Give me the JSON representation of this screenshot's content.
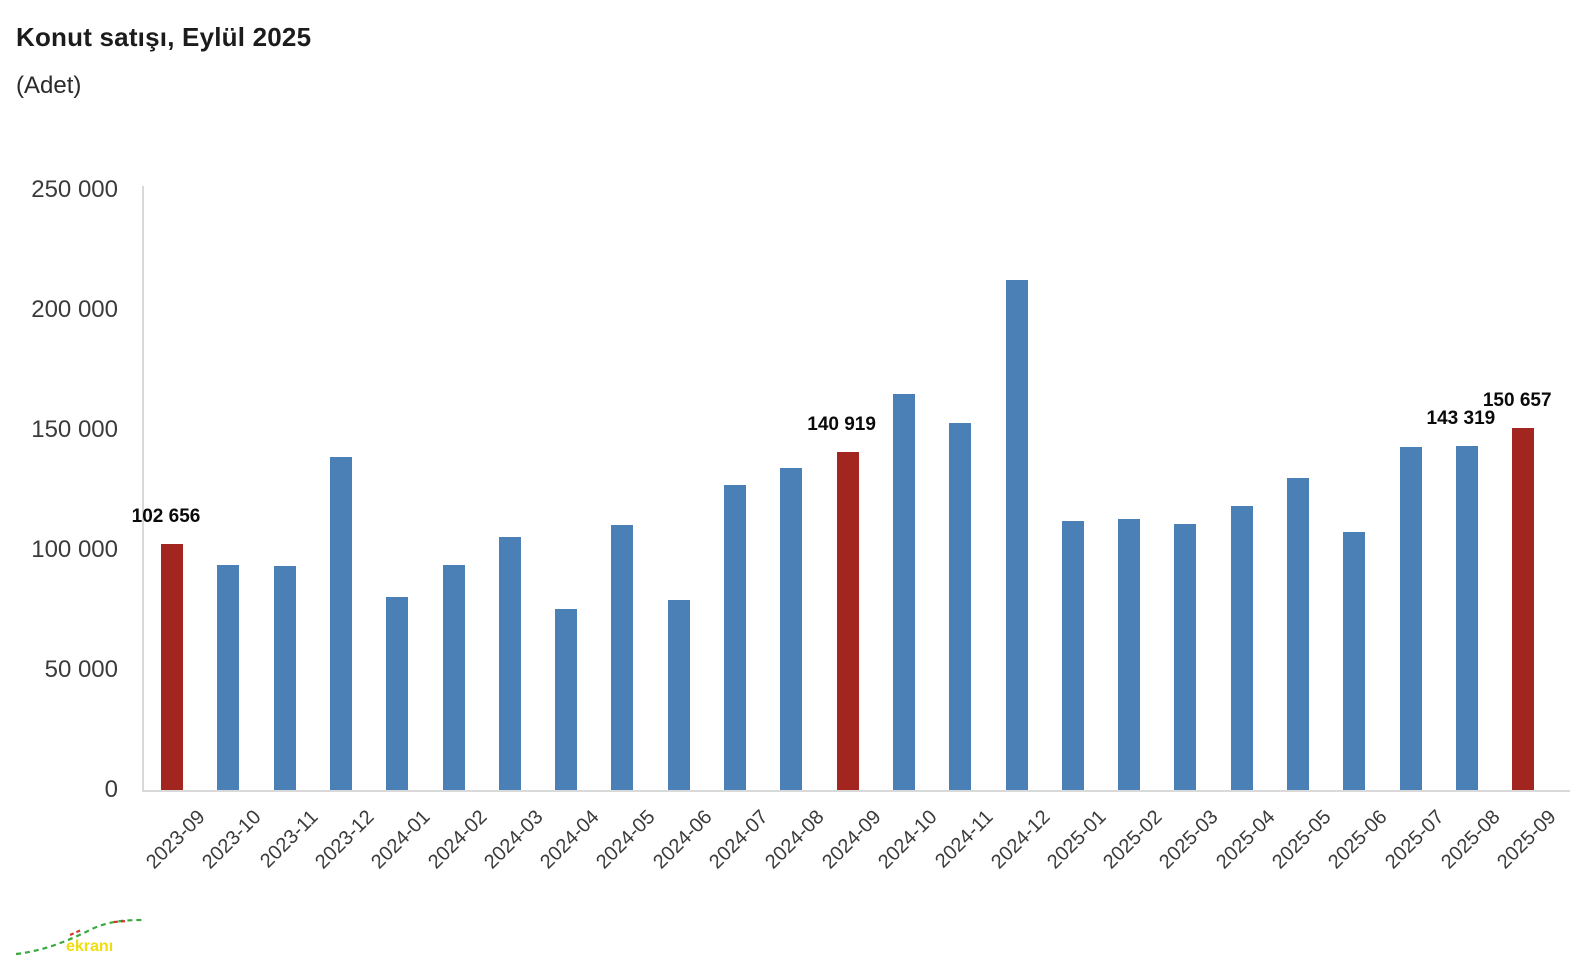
{
  "header": {
    "title": "Konut satışı, Eylül 2025",
    "subtitle": "(Adet)"
  },
  "watermark": {
    "text": "ekranı"
  },
  "chart_data": {
    "type": "bar",
    "title": "Konut satışı, Eylül 2025",
    "unit_label": "(Adet)",
    "xlabel": "",
    "ylabel": "",
    "categories": [
      "2023-09",
      "2023-10",
      "2023-11",
      "2023-12",
      "2024-01",
      "2024-02",
      "2024-03",
      "2024-04",
      "2024-05",
      "2024-06",
      "2024-07",
      "2024-08",
      "2024-09",
      "2024-10",
      "2024-11",
      "2024-12",
      "2025-01",
      "2025-02",
      "2025-03",
      "2025-04",
      "2025-05",
      "2025-06",
      "2025-07",
      "2025-08",
      "2025-09"
    ],
    "values": [
      102656,
      93800,
      93500,
      138600,
      80300,
      93900,
      105500,
      75600,
      110600,
      79300,
      127100,
      134200,
      140919,
      165100,
      153000,
      212600,
      112200,
      112800,
      110800,
      118400,
      130000,
      107700,
      142900,
      143319,
      150657
    ],
    "highlight_indices": [
      0,
      12,
      24
    ],
    "value_labels": [
      {
        "index": 0,
        "text": "102 656"
      },
      {
        "index": 12,
        "text": "140 919"
      },
      {
        "index": 23,
        "text": "143 319"
      },
      {
        "index": 24,
        "text": "150 657"
      }
    ],
    "colors": {
      "bar_default": "#4b80b7",
      "bar_highlight": "#a3251f",
      "axis_line": "#d9d9d9",
      "tick_text": "#3b3b3b",
      "value_label_text": "#0a0a0a"
    },
    "ylim": [
      0,
      250000
    ],
    "yticks": [
      {
        "value": 0,
        "label": "0"
      },
      {
        "value": 50000,
        "label": "50 000"
      },
      {
        "value": 100000,
        "label": "100 000"
      },
      {
        "value": 150000,
        "label": "150 000"
      },
      {
        "value": 200000,
        "label": "200 000"
      },
      {
        "value": 250000,
        "label": "250 000"
      }
    ],
    "grid": false,
    "legend": false,
    "x_tick_rotation_deg": -45
  }
}
